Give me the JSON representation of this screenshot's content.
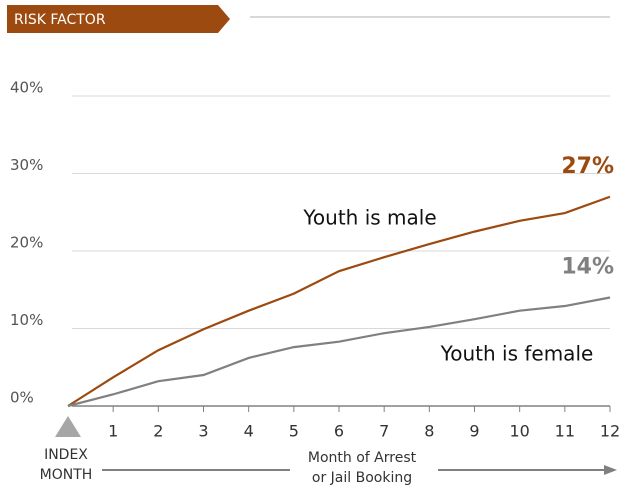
{
  "chart_data": {
    "type": "line",
    "header": "RISK FACTOR",
    "index_label": [
      "INDEX",
      "MONTH"
    ],
    "xlabel": [
      "Month of Arrest",
      "or Jail Booking"
    ],
    "x": [
      0,
      1,
      2,
      3,
      4,
      5,
      6,
      7,
      8,
      9,
      10,
      11,
      12
    ],
    "xlim": [
      0,
      12
    ],
    "xticks": [
      1,
      2,
      3,
      4,
      5,
      6,
      7,
      8,
      9,
      10,
      11,
      12
    ],
    "ylim": [
      0,
      40
    ],
    "yticks": [
      {
        "value": 0,
        "label": "0%"
      },
      {
        "value": 10,
        "label": "10%"
      },
      {
        "value": 20,
        "label": "20%"
      },
      {
        "value": 30,
        "label": "30%"
      },
      {
        "value": 40,
        "label": "40%"
      }
    ],
    "grid": true,
    "series": [
      {
        "name": "Youth is male",
        "color": "#9c4a0f",
        "values": [
          0,
          3.7,
          7.2,
          9.9,
          12.3,
          14.5,
          17.4,
          19.2,
          20.9,
          22.5,
          23.9,
          24.9,
          27
        ],
        "value_labels": [
          null,
          null,
          null,
          null,
          null,
          null,
          null,
          null,
          null,
          null,
          null,
          null,
          "27%"
        ]
      },
      {
        "name": "Youth is female",
        "color": "#808080",
        "values": [
          0,
          1.5,
          3.2,
          4.0,
          6.2,
          7.6,
          8.3,
          9.4,
          10.2,
          11.2,
          12.3,
          12.9,
          14
        ],
        "value_labels": [
          null,
          null,
          null,
          null,
          null,
          null,
          null,
          null,
          null,
          null,
          null,
          null,
          "14%"
        ]
      }
    ]
  }
}
